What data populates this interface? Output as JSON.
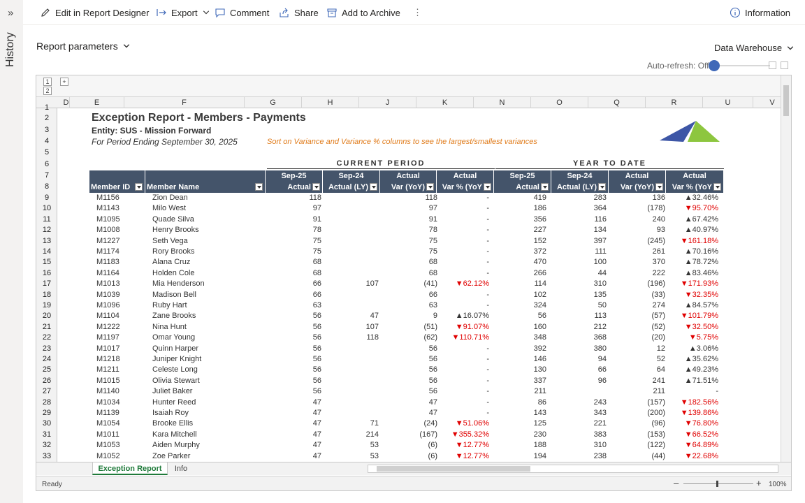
{
  "history": {
    "label": "History",
    "chevron": "»"
  },
  "toolbar": {
    "edit": "Edit in Report Designer",
    "export": "Export",
    "comment": "Comment",
    "share": "Share",
    "archive": "Add to Archive",
    "more": "⋮",
    "information": "Information"
  },
  "params": {
    "label": "Report parameters"
  },
  "datasource": {
    "label": "Data Warehouse"
  },
  "autorefresh": {
    "label": "Auto-refresh: Off"
  },
  "outline": {
    "level1": "1",
    "level2": "2",
    "expand": "+"
  },
  "columns": [
    "D",
    "E",
    "F",
    "G",
    "H",
    "J",
    "K",
    "N",
    "O",
    "Q",
    "R",
    "U",
    "V"
  ],
  "row_numbers": [
    "1",
    "2",
    "3",
    "4",
    "5",
    "6",
    "7",
    "8",
    "9",
    "10",
    "11",
    "12",
    "13",
    "14",
    "15",
    "16",
    "17",
    "18",
    "19",
    "20",
    "21",
    "22",
    "23",
    "24",
    "25",
    "26",
    "27",
    "28",
    "29",
    "30",
    "31",
    "32",
    "33"
  ],
  "report": {
    "title": "Exception Report - Members - Payments",
    "entity": "Entity: SUS - Mission Forward",
    "period": "For Period Ending September 30, 2025",
    "note": "Sort on Variance and Variance % columns to see the largest/smallest variances",
    "current_period": "CURRENT PERIOD",
    "year_to_date": "YEAR TO DATE",
    "headers": [
      {
        "l1": "",
        "l2": "Member ID"
      },
      {
        "l1": "",
        "l2": "Member Name"
      },
      {
        "l1": "Sep-25",
        "l2": "Actual"
      },
      {
        "l1": "Sep-24",
        "l2": "Actual (LY)"
      },
      {
        "l1": "Actual",
        "l2": "Var (YoY)"
      },
      {
        "l1": "Actual",
        "l2": "Var % (YoY"
      },
      {
        "l1": "Sep-25",
        "l2": "Actual"
      },
      {
        "l1": "Sep-24",
        "l2": "Actual (LY)"
      },
      {
        "l1": "Actual",
        "l2": "Var (YoY)"
      },
      {
        "l1": "Actual",
        "l2": "Var % (YoY"
      }
    ],
    "rows": [
      [
        "M1156",
        "Zion Dean",
        "118",
        "",
        "118",
        "-",
        "419",
        "283",
        "136",
        "▲32.46%"
      ],
      [
        "M1143",
        "Milo West",
        "97",
        "",
        "97",
        "-",
        "186",
        "364",
        "(178)",
        "▼95.70%"
      ],
      [
        "M1095",
        "Quade Silva",
        "91",
        "",
        "91",
        "-",
        "356",
        "116",
        "240",
        "▲67.42%"
      ],
      [
        "M1008",
        "Henry Brooks",
        "78",
        "",
        "78",
        "-",
        "227",
        "134",
        "93",
        "▲40.97%"
      ],
      [
        "M1227",
        "Seth Vega",
        "75",
        "",
        "75",
        "-",
        "152",
        "397",
        "(245)",
        "▼161.18%"
      ],
      [
        "M1174",
        "Rory Brooks",
        "75",
        "",
        "75",
        "-",
        "372",
        "111",
        "261",
        "▲70.16%"
      ],
      [
        "M1183",
        "Alana Cruz",
        "68",
        "",
        "68",
        "-",
        "470",
        "100",
        "370",
        "▲78.72%"
      ],
      [
        "M1164",
        "Holden Cole",
        "68",
        "",
        "68",
        "-",
        "266",
        "44",
        "222",
        "▲83.46%"
      ],
      [
        "M1013",
        "Mia Henderson",
        "66",
        "107",
        "(41)",
        "▼62.12%",
        "114",
        "310",
        "(196)",
        "▼171.93%"
      ],
      [
        "M1039",
        "Madison Bell",
        "66",
        "",
        "66",
        "-",
        "102",
        "135",
        "(33)",
        "▼32.35%"
      ],
      [
        "M1096",
        "Ruby Hart",
        "63",
        "",
        "63",
        "-",
        "324",
        "50",
        "274",
        "▲84.57%"
      ],
      [
        "M1104",
        "Zane Brooks",
        "56",
        "47",
        "9",
        "▲16.07%",
        "56",
        "113",
        "(57)",
        "▼101.79%"
      ],
      [
        "M1222",
        "Nina Hunt",
        "56",
        "107",
        "(51)",
        "▼91.07%",
        "160",
        "212",
        "(52)",
        "▼32.50%"
      ],
      [
        "M1197",
        "Omar Young",
        "56",
        "118",
        "(62)",
        "▼110.71%",
        "348",
        "368",
        "(20)",
        "▼5.75%"
      ],
      [
        "M1017",
        "Quinn Harper",
        "56",
        "",
        "56",
        "-",
        "392",
        "380",
        "12",
        "▲3.06%"
      ],
      [
        "M1218",
        "Juniper Knight",
        "56",
        "",
        "56",
        "-",
        "146",
        "94",
        "52",
        "▲35.62%"
      ],
      [
        "M1211",
        "Celeste Long",
        "56",
        "",
        "56",
        "-",
        "130",
        "66",
        "64",
        "▲49.23%"
      ],
      [
        "M1015",
        "Olivia Stewart",
        "56",
        "",
        "56",
        "-",
        "337",
        "96",
        "241",
        "▲71.51%"
      ],
      [
        "M1140",
        "Juliet Baker",
        "56",
        "",
        "56",
        "-",
        "211",
        "",
        "211",
        "-"
      ],
      [
        "M1034",
        "Hunter Reed",
        "47",
        "",
        "47",
        "-",
        "86",
        "243",
        "(157)",
        "▼182.56%"
      ],
      [
        "M1139",
        "Isaiah Roy",
        "47",
        "",
        "47",
        "-",
        "143",
        "343",
        "(200)",
        "▼139.86%"
      ],
      [
        "M1054",
        "Brooke Ellis",
        "47",
        "71",
        "(24)",
        "▼51.06%",
        "125",
        "221",
        "(96)",
        "▼76.80%"
      ],
      [
        "M1011",
        "Kara Mitchell",
        "47",
        "214",
        "(167)",
        "▼355.32%",
        "230",
        "383",
        "(153)",
        "▼66.52%"
      ],
      [
        "M1053",
        "Aiden Murphy",
        "47",
        "53",
        "(6)",
        "▼12.77%",
        "188",
        "310",
        "(122)",
        "▼64.89%"
      ],
      [
        "M1052",
        "Zoe Parker",
        "47",
        "53",
        "(6)",
        "▼12.77%",
        "194",
        "238",
        "(44)",
        "▼22.68%"
      ]
    ]
  },
  "tabs": {
    "active": "Exception Report",
    "other": "Info"
  },
  "status": {
    "ready": "Ready",
    "zoom": "100%"
  },
  "colors": {
    "header_bg": "#44546a",
    "negative": "#e00000",
    "note": "#e07b1a",
    "tab_active": "#1f7a3a"
  }
}
